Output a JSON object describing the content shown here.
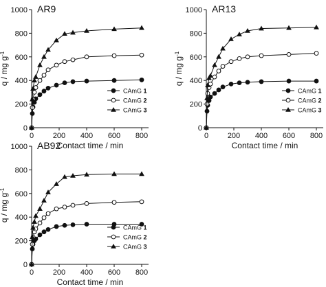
{
  "chart_data": [
    {
      "type": "line",
      "title": "AR9",
      "xlabel": "Contact time / min",
      "ylabel": "q / mg g",
      "ylabel_sup": "-1",
      "xlim": [
        0,
        850
      ],
      "ylim": [
        0,
        1000
      ],
      "xticks": [
        "0",
        "200",
        "400",
        "600",
        "800"
      ],
      "yticks": [
        "0",
        "200",
        "400",
        "600",
        "800",
        "1000"
      ],
      "legend_position": "lower-right",
      "series": [
        {
          "name": "CAmG",
          "number": "1",
          "marker": "filled-circle",
          "points": [
            [
              0,
              0
            ],
            [
              5,
              120
            ],
            [
              10,
              175
            ],
            [
              20,
              215
            ],
            [
              30,
              245
            ],
            [
              60,
              280
            ],
            [
              90,
              310
            ],
            [
              120,
              335
            ],
            [
              180,
              360
            ],
            [
              240,
              380
            ],
            [
              300,
              390
            ],
            [
              400,
              395
            ],
            [
              600,
              400
            ],
            [
              800,
              405
            ]
          ]
        },
        {
          "name": "CAmG",
          "number": "2",
          "marker": "open-circle",
          "points": [
            [
              0,
              0
            ],
            [
              5,
              170
            ],
            [
              10,
              240
            ],
            [
              20,
              300
            ],
            [
              30,
              340
            ],
            [
              60,
              400
            ],
            [
              90,
              445
            ],
            [
              120,
              490
            ],
            [
              180,
              530
            ],
            [
              240,
              560
            ],
            [
              300,
              575
            ],
            [
              400,
              600
            ],
            [
              600,
              610
            ],
            [
              800,
              615
            ]
          ]
        },
        {
          "name": "CAmG",
          "number": "3",
          "marker": "filled-triangle",
          "points": [
            [
              0,
              0
            ],
            [
              5,
              240
            ],
            [
              10,
              330
            ],
            [
              20,
              400
            ],
            [
              30,
              430
            ],
            [
              60,
              530
            ],
            [
              90,
              600
            ],
            [
              120,
              660
            ],
            [
              180,
              740
            ],
            [
              240,
              795
            ],
            [
              300,
              805
            ],
            [
              400,
              820
            ],
            [
              600,
              835
            ],
            [
              800,
              845
            ]
          ]
        }
      ]
    },
    {
      "type": "line",
      "title": "AR13",
      "xlabel": "Contact time / min",
      "ylabel": "q / mg g",
      "ylabel_sup": "-1",
      "xlim": [
        0,
        850
      ],
      "ylim": [
        0,
        1000
      ],
      "xticks": [
        "0",
        "200",
        "400",
        "600",
        "800"
      ],
      "yticks": [
        "0",
        "200",
        "400",
        "600",
        "800",
        "1000"
      ],
      "legend_position": "lower-right",
      "series": [
        {
          "name": "CAmG",
          "number": "1",
          "marker": "filled-circle",
          "points": [
            [
              0,
              0
            ],
            [
              5,
              140
            ],
            [
              10,
              190
            ],
            [
              20,
              230
            ],
            [
              30,
              260
            ],
            [
              60,
              290
            ],
            [
              90,
              320
            ],
            [
              120,
              345
            ],
            [
              180,
              370
            ],
            [
              240,
              380
            ],
            [
              300,
              385
            ],
            [
              400,
              390
            ],
            [
              600,
              395
            ],
            [
              800,
              395
            ]
          ]
        },
        {
          "name": "CAmG",
          "number": "2",
          "marker": "open-circle",
          "points": [
            [
              0,
              0
            ],
            [
              5,
              200
            ],
            [
              10,
              290
            ],
            [
              20,
              340
            ],
            [
              30,
              370
            ],
            [
              60,
              430
            ],
            [
              90,
              480
            ],
            [
              120,
              520
            ],
            [
              180,
              560
            ],
            [
              240,
              585
            ],
            [
              300,
              600
            ],
            [
              400,
              610
            ],
            [
              600,
              620
            ],
            [
              800,
              630
            ]
          ]
        },
        {
          "name": "CAmG",
          "number": "3",
          "marker": "filled-triangle",
          "points": [
            [
              0,
              0
            ],
            [
              5,
              250
            ],
            [
              10,
              360
            ],
            [
              20,
              420
            ],
            [
              30,
              440
            ],
            [
              60,
              530
            ],
            [
              90,
              600
            ],
            [
              120,
              670
            ],
            [
              180,
              750
            ],
            [
              240,
              790
            ],
            [
              300,
              820
            ],
            [
              400,
              840
            ],
            [
              600,
              845
            ],
            [
              800,
              850
            ]
          ]
        }
      ]
    },
    {
      "type": "line",
      "title": "AB92",
      "xlabel": "Contact time / min",
      "ylabel": "q / mg g",
      "ylabel_sup": "-1",
      "xlim": [
        0,
        850
      ],
      "ylim": [
        0,
        1000
      ],
      "xticks": [
        "0",
        "200",
        "400",
        "600",
        "800"
      ],
      "yticks": [
        "0",
        "200",
        "400",
        "600",
        "800",
        "1000"
      ],
      "legend_position": "lower-right",
      "series": [
        {
          "name": "CAmG",
          "number": "1",
          "marker": "filled-circle",
          "points": [
            [
              0,
              0
            ],
            [
              5,
              130
            ],
            [
              10,
              170
            ],
            [
              20,
              200
            ],
            [
              30,
              215
            ],
            [
              60,
              250
            ],
            [
              90,
              275
            ],
            [
              120,
              295
            ],
            [
              180,
              320
            ],
            [
              240,
              330
            ],
            [
              300,
              335
            ],
            [
              400,
              340
            ],
            [
              600,
              340
            ],
            [
              800,
              340
            ]
          ]
        },
        {
          "name": "CAmG",
          "number": "2",
          "marker": "open-circle",
          "points": [
            [
              0,
              0
            ],
            [
              5,
              170
            ],
            [
              10,
              230
            ],
            [
              20,
              275
            ],
            [
              30,
              300
            ],
            [
              60,
              350
            ],
            [
              90,
              395
            ],
            [
              120,
              430
            ],
            [
              180,
              470
            ],
            [
              240,
              485
            ],
            [
              300,
              500
            ],
            [
              400,
              515
            ],
            [
              600,
              525
            ],
            [
              800,
              530
            ]
          ]
        },
        {
          "name": "CAmG",
          "number": "3",
          "marker": "filled-triangle",
          "points": [
            [
              0,
              0
            ],
            [
              5,
              230
            ],
            [
              10,
              310
            ],
            [
              20,
              360
            ],
            [
              30,
              410
            ],
            [
              60,
              470
            ],
            [
              90,
              540
            ],
            [
              120,
              610
            ],
            [
              180,
              680
            ],
            [
              240,
              740
            ],
            [
              300,
              750
            ],
            [
              400,
              760
            ],
            [
              600,
              765
            ],
            [
              800,
              765
            ]
          ]
        }
      ]
    }
  ]
}
